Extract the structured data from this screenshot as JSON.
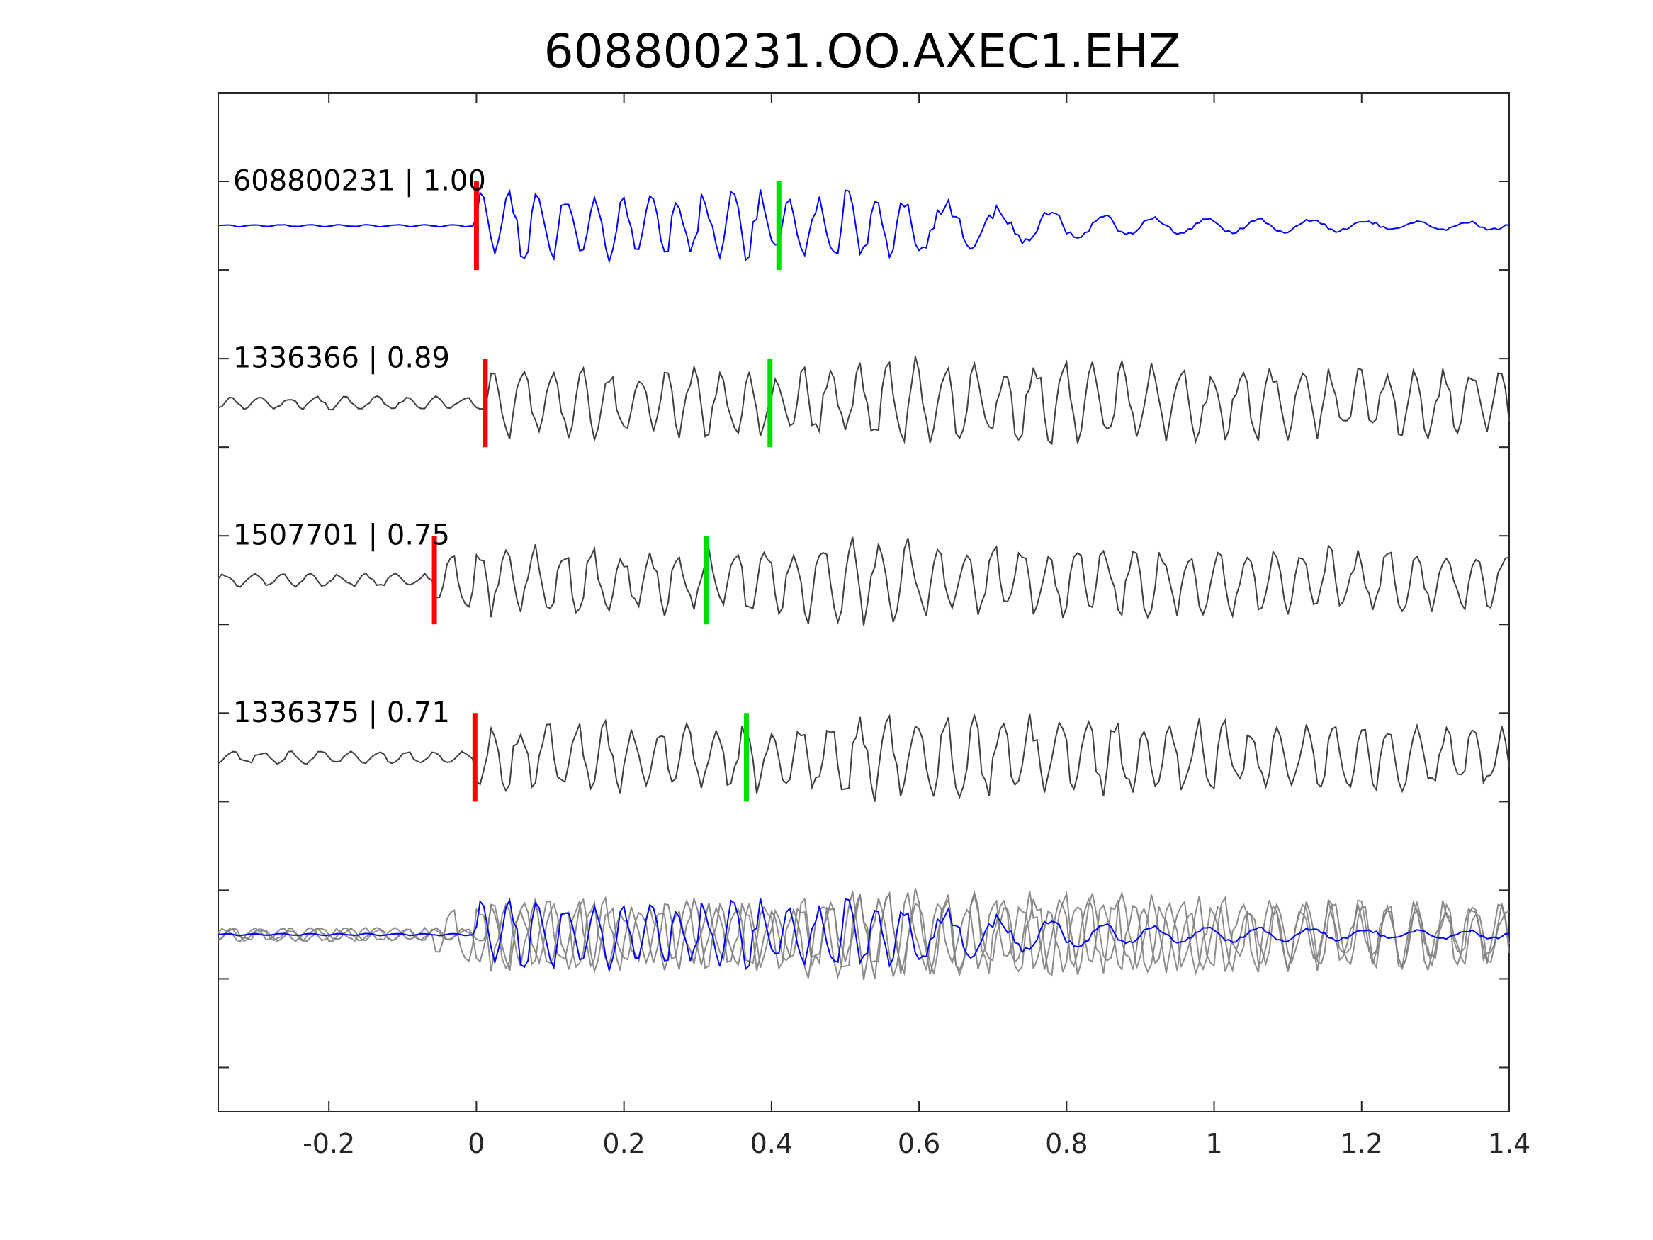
{
  "chart_data": {
    "type": "line",
    "title": "608800231.OO.AXEC1.EHZ",
    "xlabel": "",
    "ylabel": "",
    "xlim": [
      -0.35,
      1.4
    ],
    "ylim": [
      0,
      11.5
    ],
    "grid": false,
    "x_ticks": [
      -0.2,
      0,
      0.2,
      0.4,
      0.6,
      0.8,
      1.0,
      1.2,
      1.4
    ],
    "x_tick_labels": [
      "-0.2",
      "0",
      "0.2",
      "0.4",
      "0.6",
      "0.8",
      "1",
      "1.2",
      "1.4"
    ],
    "y_ticks": [
      0.5,
      1.5,
      2.5,
      3.5,
      4.5,
      5.5,
      6.5,
      7.5,
      8.5,
      9.5,
      10.5
    ],
    "y_tick_labels": [],
    "colors": {
      "reference": "#0000ff",
      "neighbor": "#404040",
      "overlay": "#808080",
      "p_pick": "#ff0000",
      "s_pick": "#00dd00",
      "axes": "#262626"
    },
    "traces": [
      {
        "label": "608800231 | 1.00",
        "id": "608800231",
        "cc": "1.00",
        "baseline": 10.0,
        "color": "#0000ff",
        "p_pick": 0.0,
        "s_pick": 0.41,
        "amplitude": 1.0,
        "seed": 11
      },
      {
        "label": "1336366 | 0.89",
        "id": "1336366",
        "cc": "0.89",
        "baseline": 8.0,
        "color": "#404040",
        "p_pick": 0.012,
        "s_pick": 0.398,
        "amplitude": 1.0,
        "seed": 23
      },
      {
        "label": "1507701 | 0.75",
        "id": "1507701",
        "cc": "0.75",
        "baseline": 6.0,
        "color": "#404040",
        "p_pick": -0.057,
        "s_pick": 0.312,
        "amplitude": 1.0,
        "seed": 37
      },
      {
        "label": "1336375 | 0.71",
        "id": "1336375",
        "cc": "0.71",
        "baseline": 4.0,
        "color": "#404040",
        "p_pick": -0.002,
        "s_pick": 0.366,
        "amplitude": 1.0,
        "seed": 53
      }
    ],
    "stack": {
      "baseline": 2.0,
      "description": "overlay of all traces aligned"
    }
  }
}
